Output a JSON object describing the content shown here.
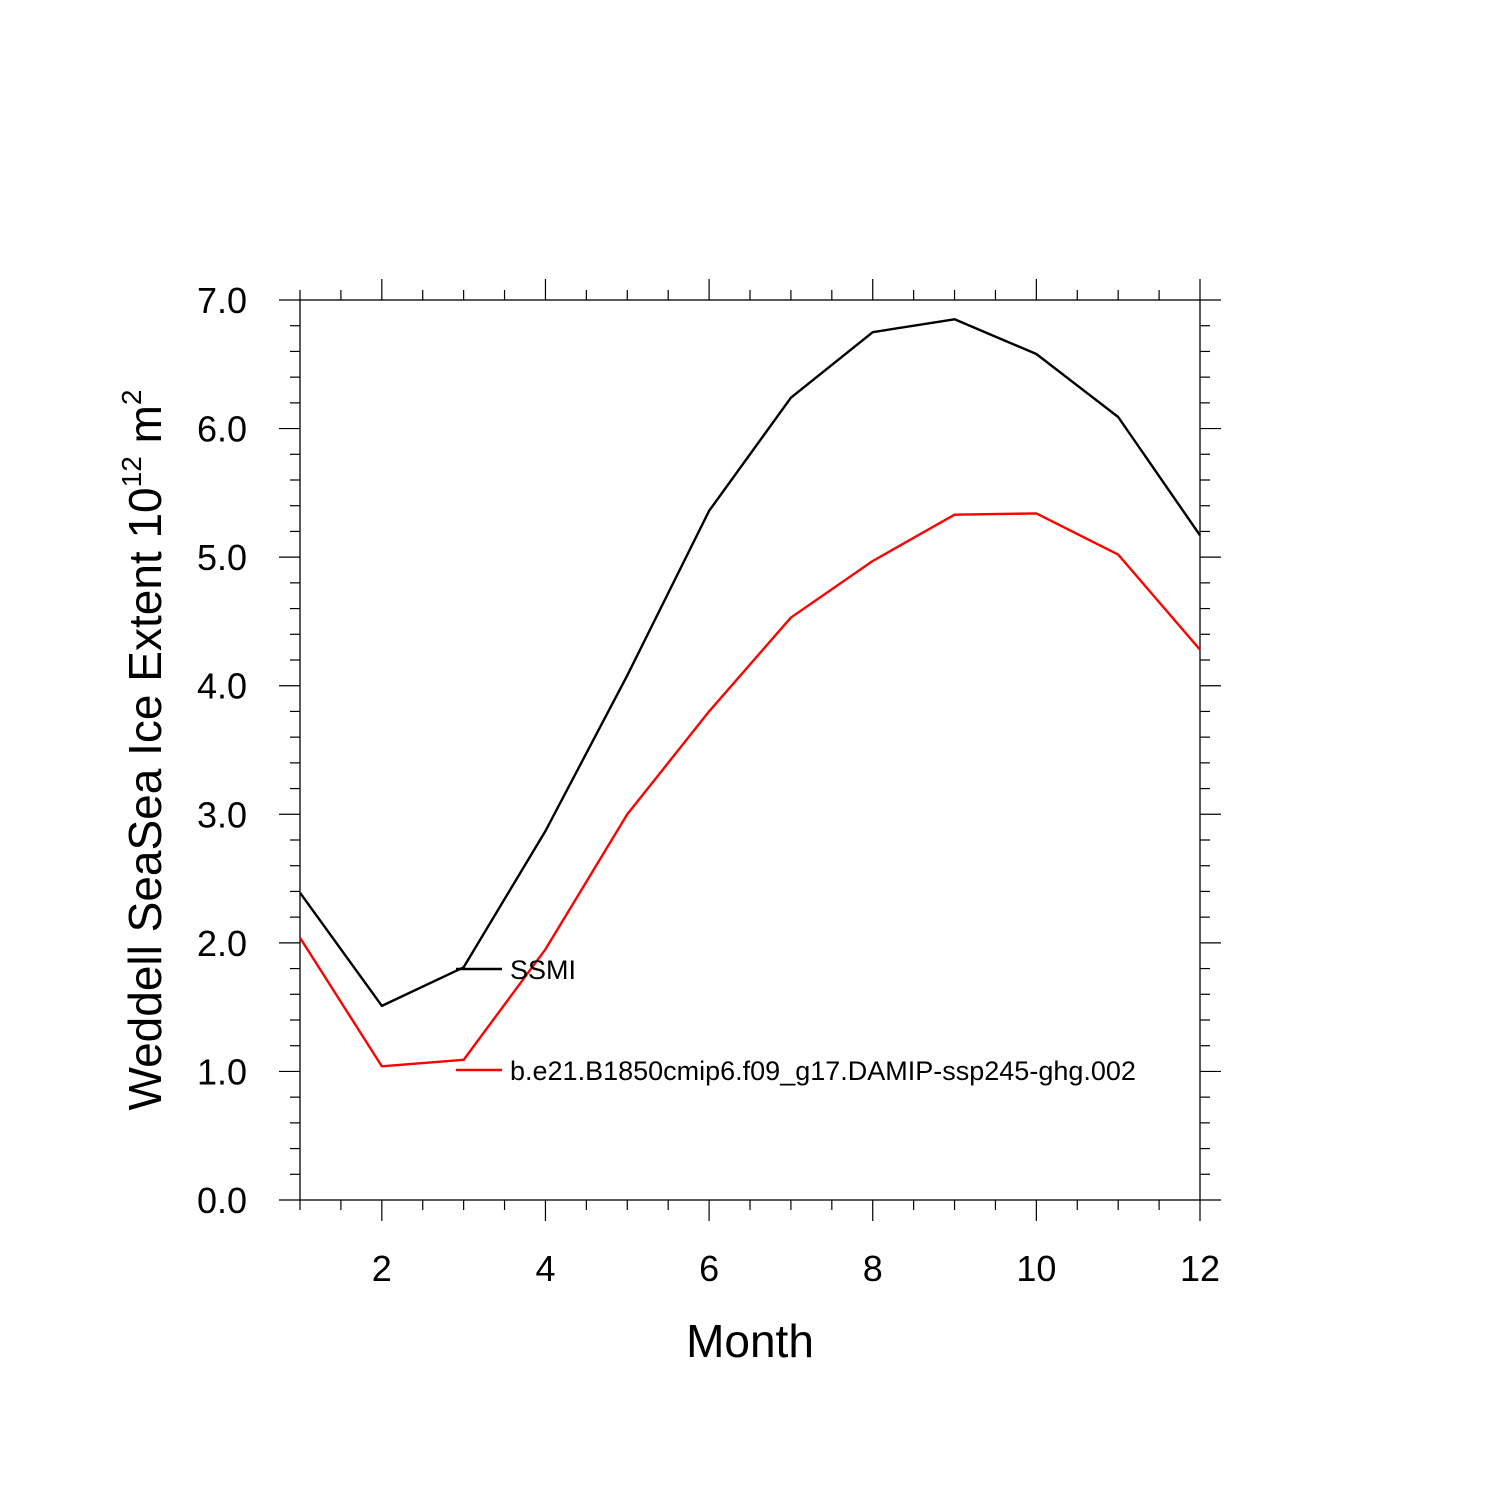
{
  "chart_data": {
    "type": "line",
    "title": "",
    "xlabel": "Month",
    "ylabel": {
      "prefix": "Weddell SeaSea Ice Extent 10",
      "exponent": "12",
      "unit": " m",
      "unit_exponent": "2"
    },
    "xlim": [
      1,
      12
    ],
    "ylim": [
      0,
      7
    ],
    "x_ticks": [
      2,
      4,
      6,
      8,
      10,
      12
    ],
    "y_ticks": [
      "0.0",
      "1.0",
      "2.0",
      "3.0",
      "4.0",
      "5.0",
      "6.0",
      "7.0"
    ],
    "grid": false,
    "legend_position": "inside-left",
    "x": [
      1,
      2,
      3,
      4,
      5,
      6,
      7,
      8,
      9,
      10,
      11,
      12
    ],
    "series": [
      {
        "name": "SSMI",
        "color": "#000000",
        "values": [
          2.39,
          1.51,
          1.81,
          2.87,
          4.08,
          5.36,
          6.24,
          6.75,
          6.85,
          6.58,
          6.09,
          5.17
        ]
      },
      {
        "name": "b.e21.B1850cmip6.f09_g17.DAMIP-ssp245-ghg.002",
        "color": "#ff0000",
        "values": [
          2.04,
          1.04,
          1.09,
          1.95,
          3.0,
          3.8,
          4.53,
          4.97,
          5.33,
          5.34,
          5.02,
          4.28
        ]
      }
    ]
  }
}
